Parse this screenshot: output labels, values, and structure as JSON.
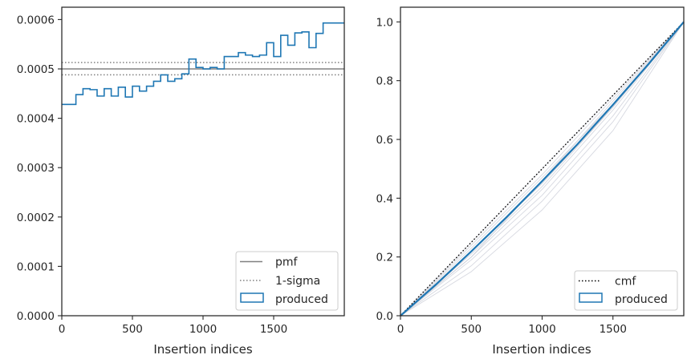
{
  "chart_data": [
    {
      "type": "step",
      "xlabel": "Insertion indices",
      "ylabel": "",
      "xlim": [
        0,
        2000
      ],
      "ylim": [
        0,
        0.000625
      ],
      "xticks": [
        0,
        500,
        1000,
        1500
      ],
      "xtick_labels": [
        "0",
        "500",
        "1000",
        "1500"
      ],
      "yticks": [
        0,
        0.0001,
        0.0002,
        0.0003,
        0.0004,
        0.0005,
        0.0006
      ],
      "ytick_labels": [
        "0.0000",
        "0.0001",
        "0.0002",
        "0.0003",
        "0.0004",
        "0.0005",
        "0.0006"
      ],
      "grid": false,
      "legend_position": "lower-right",
      "pmf": {
        "name": "pmf",
        "value": 0.0005,
        "color": "#808080"
      },
      "sigma": {
        "name": "1-sigma",
        "values": [
          0.000488,
          0.000513
        ],
        "color": "#808080"
      },
      "produced": {
        "name": "produced",
        "color": "#1f77b4",
        "bin_edges": [
          0,
          100,
          150,
          200,
          250,
          300,
          350,
          400,
          450,
          500,
          550,
          600,
          650,
          700,
          750,
          800,
          850,
          900,
          950,
          1000,
          1050,
          1100,
          1150,
          1200,
          1250,
          1300,
          1350,
          1400,
          1450,
          1500,
          1550,
          1600,
          1650,
          1700,
          1750,
          1800,
          1850,
          1900,
          1950,
          2000
        ],
        "values": [
          0.000428,
          0.000448,
          0.00046,
          0.000458,
          0.000445,
          0.00046,
          0.000445,
          0.000463,
          0.000443,
          0.000465,
          0.000455,
          0.000465,
          0.000475,
          0.000488,
          0.000475,
          0.00048,
          0.00049,
          0.00052,
          0.000503,
          0.0005,
          0.000503,
          0.0005,
          0.000525,
          0.000525,
          0.000533,
          0.000528,
          0.000525,
          0.000528,
          0.000553,
          0.000525,
          0.000568,
          0.000548,
          0.000573,
          0.000575,
          0.000543,
          0.000572,
          0.000593,
          0.000593,
          0.000593
        ]
      }
    },
    {
      "type": "line",
      "xlabel": "Insertion indices",
      "ylabel": "",
      "xlim": [
        0,
        2000
      ],
      "ylim": [
        0,
        1.05
      ],
      "xticks": [
        0,
        500,
        1000,
        1500
      ],
      "xtick_labels": [
        "0",
        "500",
        "1000",
        "1500"
      ],
      "yticks": [
        0,
        0.2,
        0.4,
        0.6,
        0.8,
        1.0
      ],
      "ytick_labels": [
        "0.0",
        "0.2",
        "0.4",
        "0.6",
        "0.8",
        "1.0"
      ],
      "grid": false,
      "legend_position": "lower-right",
      "cmf": {
        "name": "cmf",
        "x": [
          0,
          2000
        ],
        "y": [
          0,
          1
        ],
        "color": "#000000"
      },
      "produced": {
        "name": "produced",
        "color": "#1f77b4",
        "x": [
          0,
          250,
          500,
          750,
          1000,
          1250,
          1500,
          1750,
          2000
        ],
        "y": [
          0,
          0.106,
          0.219,
          0.336,
          0.458,
          0.584,
          0.718,
          0.856,
          1.0
        ]
      },
      "runs": [
        {
          "x": [
            0,
            500,
            1000,
            1500,
            2000
          ],
          "y": [
            0,
            0.19,
            0.41,
            0.68,
            1.0
          ]
        },
        {
          "x": [
            0,
            500,
            1000,
            1500,
            2000
          ],
          "y": [
            0,
            0.2,
            0.43,
            0.7,
            1.0
          ]
        },
        {
          "x": [
            0,
            500,
            1000,
            1500,
            2000
          ],
          "y": [
            0,
            0.21,
            0.44,
            0.71,
            1.0
          ]
        },
        {
          "x": [
            0,
            500,
            1000,
            1500,
            2000
          ],
          "y": [
            0,
            0.22,
            0.45,
            0.71,
            1.0
          ]
        },
        {
          "x": [
            0,
            500,
            1000,
            1500,
            2000
          ],
          "y": [
            0,
            0.23,
            0.47,
            0.72,
            1.0
          ]
        },
        {
          "x": [
            0,
            500,
            1000,
            1500,
            2000
          ],
          "y": [
            0,
            0.24,
            0.48,
            0.74,
            1.0
          ]
        },
        {
          "x": [
            0,
            500,
            1000,
            1500,
            2000
          ],
          "y": [
            0,
            0.25,
            0.5,
            0.75,
            1.0
          ]
        },
        {
          "x": [
            0,
            500,
            1000,
            1500,
            2000
          ],
          "y": [
            0,
            0.15,
            0.36,
            0.63,
            1.0
          ]
        },
        {
          "x": [
            0,
            500,
            1000,
            1500,
            2000
          ],
          "y": [
            0,
            0.17,
            0.39,
            0.66,
            1.0
          ]
        },
        {
          "x": [
            0,
            500,
            1000,
            1500,
            2000
          ],
          "y": [
            0,
            0.2,
            0.46,
            0.73,
            1.0
          ]
        }
      ]
    }
  ]
}
